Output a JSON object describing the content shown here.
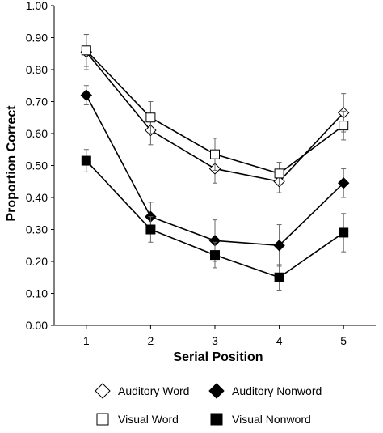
{
  "chart_data": {
    "type": "line",
    "xlabel": "Serial Position",
    "ylabel": "Proportion Correct",
    "x": [
      1,
      2,
      3,
      4,
      5
    ],
    "xlim": [
      0.5,
      5.5
    ],
    "ylim": [
      0,
      1
    ],
    "yticks": [
      "0.00",
      "0.10",
      "0.20",
      "0.30",
      "0.40",
      "0.50",
      "0.60",
      "0.70",
      "0.80",
      "0.90",
      "1.00"
    ],
    "xticks": [
      "1",
      "2",
      "3",
      "4",
      "5"
    ],
    "grid": false,
    "legend_position": "bottom",
    "series": [
      {
        "name": "Auditory Word",
        "marker": "diamond-open",
        "values": [
          0.855,
          0.61,
          0.49,
          0.45,
          0.665
        ],
        "errors": [
          0.055,
          0.045,
          0.045,
          0.035,
          0.06
        ]
      },
      {
        "name": "Visual Word",
        "marker": "square-open",
        "values": [
          0.86,
          0.65,
          0.535,
          0.475,
          0.625
        ],
        "errors": [
          0.05,
          0.05,
          0.05,
          0.035,
          0.045
        ]
      },
      {
        "name": "Auditory Nonword",
        "marker": "diamond-filled",
        "values": [
          0.72,
          0.34,
          0.265,
          0.25,
          0.445
        ],
        "errors": [
          0.03,
          0.045,
          0.065,
          0.065,
          0.045
        ]
      },
      {
        "name": "Visual Nonword",
        "marker": "square-filled",
        "values": [
          0.515,
          0.3,
          0.22,
          0.15,
          0.29
        ],
        "errors": [
          0.035,
          0.04,
          0.04,
          0.04,
          0.06
        ]
      }
    ]
  }
}
